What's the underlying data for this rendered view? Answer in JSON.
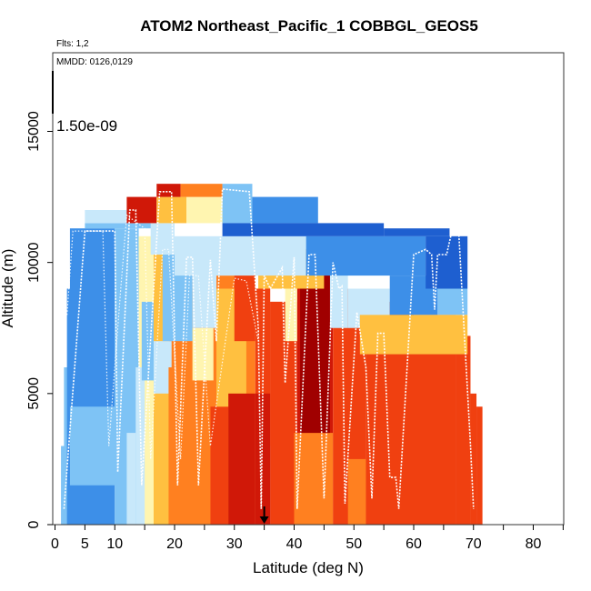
{
  "chart_data": {
    "type": "heatmap",
    "title": "ATOM2 Northeast_Pacific_1 COBBGL_GEOS5",
    "annotations": {
      "flights": "Flts: 1,2",
      "mmdd": "MMDD: 0126,0129",
      "colorbar_value": "1.50e-09"
    },
    "xlabel": "Latitude (deg N)",
    "ylabel": "Altitude (m)",
    "xlim": [
      0,
      85
    ],
    "ylim": [
      0,
      18000
    ],
    "x_ticks": [
      0,
      5,
      10,
      20,
      30,
      40,
      50,
      60,
      70,
      80
    ],
    "x_minor_ticks": [
      15,
      25,
      35,
      45,
      55,
      65,
      75,
      85
    ],
    "y_ticks": [
      0,
      5000,
      10000,
      15000
    ],
    "marker_latitude": 35,
    "grid": false,
    "colorscale": [
      "#1E5FD0",
      "#3D8FE8",
      "#7EC3F5",
      "#C8E8FA",
      "#FFF5B0",
      "#FFC040",
      "#FF8020",
      "#F04010",
      "#D01808",
      "#A00000"
    ],
    "columns": [
      {
        "lat_min": 1.0,
        "lat_max": 2.5,
        "top": 3000,
        "v": 2
      },
      {
        "lat_min": 1.5,
        "lat_max": 2.5,
        "top": 6000,
        "v": 2
      },
      {
        "lat_min": 2.0,
        "lat_max": 3.0,
        "top": 9000,
        "v": 1
      },
      {
        "lat_min": 2.5,
        "lat_max": 10.0,
        "top": 11300,
        "v": 1
      },
      {
        "lat_min": 10.0,
        "lat_max": 14.0,
        "top": 11300,
        "v": 2
      },
      {
        "lat_min": 14.0,
        "lat_max": 16.5,
        "top": 11000,
        "v": 4
      },
      {
        "lat_min": 16.5,
        "lat_max": 19.0,
        "top": 10500,
        "v": 5
      },
      {
        "lat_min": 19.0,
        "lat_max": 23.0,
        "top": 10300,
        "v": 6
      },
      {
        "lat_min": 23.0,
        "lat_max": 26.0,
        "top": 10000,
        "v": 6
      },
      {
        "lat_min": 26.0,
        "lat_max": 33.5,
        "top": 9500,
        "v": 6
      },
      {
        "lat_min": 33.5,
        "lat_max": 36.0,
        "top": 9000,
        "v": 7
      },
      {
        "lat_min": 36.0,
        "lat_max": 40.5,
        "top": 8500,
        "v": 7
      },
      {
        "lat_min": 40.5,
        "lat_max": 46.5,
        "top": 10500,
        "v": 8
      },
      {
        "lat_min": 46.5,
        "lat_max": 52.0,
        "top": 9000,
        "v": 7
      },
      {
        "lat_min": 52.0,
        "lat_max": 60.0,
        "top": 8500,
        "v": 7
      },
      {
        "lat_min": 60.0,
        "lat_max": 67.0,
        "top": 8000,
        "v": 7
      },
      {
        "lat_min": 67.0,
        "lat_max": 69.5,
        "top": 7200,
        "v": 7
      },
      {
        "lat_min": 69.5,
        "lat_max": 70.5,
        "top": 5000,
        "v": 7
      },
      {
        "lat_min": 70.5,
        "lat_max": 71.5,
        "top": 4500,
        "v": 7
      }
    ],
    "cells": [
      {
        "lat_min": 2.5,
        "lat_max": 12.0,
        "alt_min": 1500,
        "alt_max": 4500,
        "v": 2
      },
      {
        "lat_min": 10.0,
        "lat_max": 14.0,
        "alt_min": 3500,
        "alt_max": 9000,
        "v": 2
      },
      {
        "lat_min": 12.0,
        "lat_max": 13.5,
        "alt_min": 0,
        "alt_max": 3500,
        "v": 3
      },
      {
        "lat_min": 13.5,
        "lat_max": 15.0,
        "alt_min": 0,
        "alt_max": 6000,
        "v": 3
      },
      {
        "lat_min": 14.5,
        "lat_max": 16.5,
        "alt_min": 5500,
        "alt_max": 8500,
        "v": 2
      },
      {
        "lat_min": 16.5,
        "lat_max": 19.0,
        "alt_min": 0,
        "alt_max": 5000,
        "v": 5
      },
      {
        "lat_min": 16.5,
        "lat_max": 19.5,
        "alt_min": 5000,
        "alt_max": 7000,
        "v": 3
      },
      {
        "lat_min": 19.0,
        "lat_max": 22.0,
        "alt_min": 0,
        "alt_max": 6000,
        "v": 6
      },
      {
        "lat_min": 18.0,
        "lat_max": 23.0,
        "alt_min": 7000,
        "alt_max": 10300,
        "v": 2
      },
      {
        "lat_min": 22.0,
        "lat_max": 26.0,
        "alt_min": 0,
        "alt_max": 5500,
        "v": 6
      },
      {
        "lat_min": 23.0,
        "lat_max": 26.5,
        "alt_min": 5500,
        "alt_max": 7500,
        "v": 4
      },
      {
        "lat_min": 23.0,
        "lat_max": 27.0,
        "alt_min": 7500,
        "alt_max": 10000,
        "v": 3
      },
      {
        "lat_min": 26.0,
        "lat_max": 29.0,
        "alt_min": 0,
        "alt_max": 4500,
        "v": 7
      },
      {
        "lat_min": 27.0,
        "lat_max": 32.0,
        "alt_min": 4500,
        "alt_max": 9000,
        "v": 5
      },
      {
        "lat_min": 30.0,
        "lat_max": 33.5,
        "alt_min": 7000,
        "alt_max": 9500,
        "v": 7
      },
      {
        "lat_min": 29.0,
        "lat_max": 33.5,
        "alt_min": 0,
        "alt_max": 5000,
        "v": 8
      },
      {
        "lat_min": 33.5,
        "lat_max": 36.0,
        "alt_min": 0,
        "alt_max": 5000,
        "v": 8
      },
      {
        "lat_min": 36.0,
        "lat_max": 38.5,
        "alt_min": 3000,
        "alt_max": 8500,
        "v": 7
      },
      {
        "lat_min": 38.5,
        "lat_max": 40.5,
        "alt_min": 7000,
        "alt_max": 9500,
        "v": 4
      },
      {
        "lat_min": 40.0,
        "lat_max": 46.5,
        "alt_min": 0,
        "alt_max": 3500,
        "v": 6
      },
      {
        "lat_min": 41.0,
        "lat_max": 46.0,
        "alt_min": 3500,
        "alt_max": 10500,
        "v": 9
      },
      {
        "lat_min": 46.0,
        "lat_max": 49.0,
        "alt_min": 7500,
        "alt_max": 10000,
        "v": 3
      },
      {
        "lat_min": 49.0,
        "lat_max": 52.0,
        "alt_min": 0,
        "alt_max": 2500,
        "v": 6
      },
      {
        "lat_min": 49.0,
        "lat_max": 56.0,
        "alt_min": 7500,
        "alt_max": 9000,
        "v": 3
      },
      {
        "lat_min": 56.0,
        "lat_max": 64.0,
        "alt_min": 8000,
        "alt_max": 9500,
        "v": 1
      },
      {
        "lat_min": 64.0,
        "lat_max": 69.0,
        "alt_min": 8000,
        "alt_max": 9000,
        "v": 2
      },
      {
        "lat_min": 51.0,
        "lat_max": 69.0,
        "alt_min": 6500,
        "alt_max": 8000,
        "v": 5
      },
      {
        "lat_min": 34.0,
        "lat_max": 45.0,
        "alt_min": 9000,
        "alt_max": 10500,
        "v": 5
      },
      {
        "lat_min": 16.0,
        "lat_max": 20.0,
        "alt_min": 10300,
        "alt_max": 11500,
        "v": 3
      },
      {
        "lat_min": 20.0,
        "lat_max": 42.0,
        "alt_min": 9500,
        "alt_max": 11000,
        "v": 3
      },
      {
        "lat_min": 42.0,
        "lat_max": 62.0,
        "alt_min": 9500,
        "alt_max": 11000,
        "v": 1
      },
      {
        "lat_min": 62.0,
        "lat_max": 69.0,
        "alt_min": 9000,
        "alt_max": 11000,
        "v": 0
      },
      {
        "lat_min": 5.0,
        "lat_max": 16.0,
        "alt_min": 11300,
        "alt_max": 11500,
        "v": 2
      },
      {
        "lat_min": 5.0,
        "lat_max": 12.0,
        "alt_min": 11500,
        "alt_max": 12000,
        "v": 3
      },
      {
        "lat_min": 12.0,
        "lat_max": 17.0,
        "alt_min": 11500,
        "alt_max": 12500,
        "v": 8
      },
      {
        "lat_min": 17.0,
        "lat_max": 22.0,
        "alt_min": 11500,
        "alt_max": 12500,
        "v": 5
      },
      {
        "lat_min": 22.0,
        "lat_max": 28.0,
        "alt_min": 11500,
        "alt_max": 12500,
        "v": 4
      },
      {
        "lat_min": 17.0,
        "lat_max": 21.0,
        "alt_min": 12500,
        "alt_max": 13000,
        "v": 8
      },
      {
        "lat_min": 21.0,
        "lat_max": 28.0,
        "alt_min": 12500,
        "alt_max": 13000,
        "v": 6
      },
      {
        "lat_min": 28.0,
        "lat_max": 33.0,
        "alt_min": 11500,
        "alt_max": 13000,
        "v": 2
      },
      {
        "lat_min": 33.0,
        "lat_max": 44.0,
        "alt_min": 11500,
        "alt_max": 12500,
        "v": 1
      },
      {
        "lat_min": 28.0,
        "lat_max": 55.0,
        "alt_min": 11000,
        "alt_max": 11500,
        "v": 0
      },
      {
        "lat_min": 55.0,
        "lat_max": 66.0,
        "alt_min": 11000,
        "alt_max": 11300,
        "v": 0
      }
    ],
    "flight_track": [
      [
        1.5,
        600
      ],
      [
        5,
        11200
      ],
      [
        10,
        11200
      ],
      [
        10.5,
        2000
      ],
      [
        12.5,
        12000
      ],
      [
        13.5,
        12000
      ],
      [
        14.5,
        1500
      ],
      [
        17.5,
        12700
      ],
      [
        19.5,
        12700
      ],
      [
        20.5,
        1500
      ],
      [
        22,
        10200
      ],
      [
        23,
        10200
      ],
      [
        24,
        1500
      ],
      [
        26,
        10100
      ],
      [
        27,
        7000
      ],
      [
        28,
        12800
      ],
      [
        32.5,
        12700
      ],
      [
        34,
        7500
      ],
      [
        34.5,
        600
      ],
      [
        35,
        9500
      ],
      [
        36,
        9000
      ],
      [
        38,
        9800
      ],
      [
        38.5,
        5400
      ],
      [
        40,
        10200
      ],
      [
        40.5,
        600
      ],
      [
        42.5,
        10300
      ],
      [
        43.5,
        10300
      ],
      [
        45,
        1000
      ],
      [
        46.5,
        10000
      ],
      [
        47.5,
        9000
      ],
      [
        48,
        9100
      ],
      [
        48.5,
        800
      ],
      [
        50.5,
        8100
      ],
      [
        52,
        6000
      ],
      [
        53,
        1000
      ],
      [
        54,
        7300
      ],
      [
        55,
        7300
      ],
      [
        56,
        1800
      ],
      [
        57,
        1800
      ],
      [
        57.5,
        600
      ],
      [
        60,
        10300
      ],
      [
        62,
        10500
      ],
      [
        63,
        10300
      ],
      [
        63.5,
        8200
      ],
      [
        64,
        10300
      ],
      [
        65.5,
        10300
      ],
      [
        66.5,
        11300
      ],
      [
        67.5,
        11300
      ],
      [
        69.5,
        3000
      ],
      [
        70,
        600
      ]
    ],
    "flight_track_2": [
      [
        2,
        8000
      ],
      [
        3,
        11200
      ],
      [
        4.5,
        11200
      ],
      [
        8,
        11200
      ],
      [
        9,
        3000
      ],
      [
        11,
        9000
      ],
      [
        12,
        11800
      ],
      [
        15,
        11300
      ],
      [
        16,
        2500
      ],
      [
        18,
        10500
      ],
      [
        19,
        10500
      ],
      [
        21,
        2500
      ],
      [
        22.5,
        9500
      ],
      [
        24,
        9500
      ],
      [
        26,
        3000
      ],
      [
        30,
        9400
      ],
      [
        32,
        9300
      ],
      [
        34,
        7000
      ]
    ]
  }
}
